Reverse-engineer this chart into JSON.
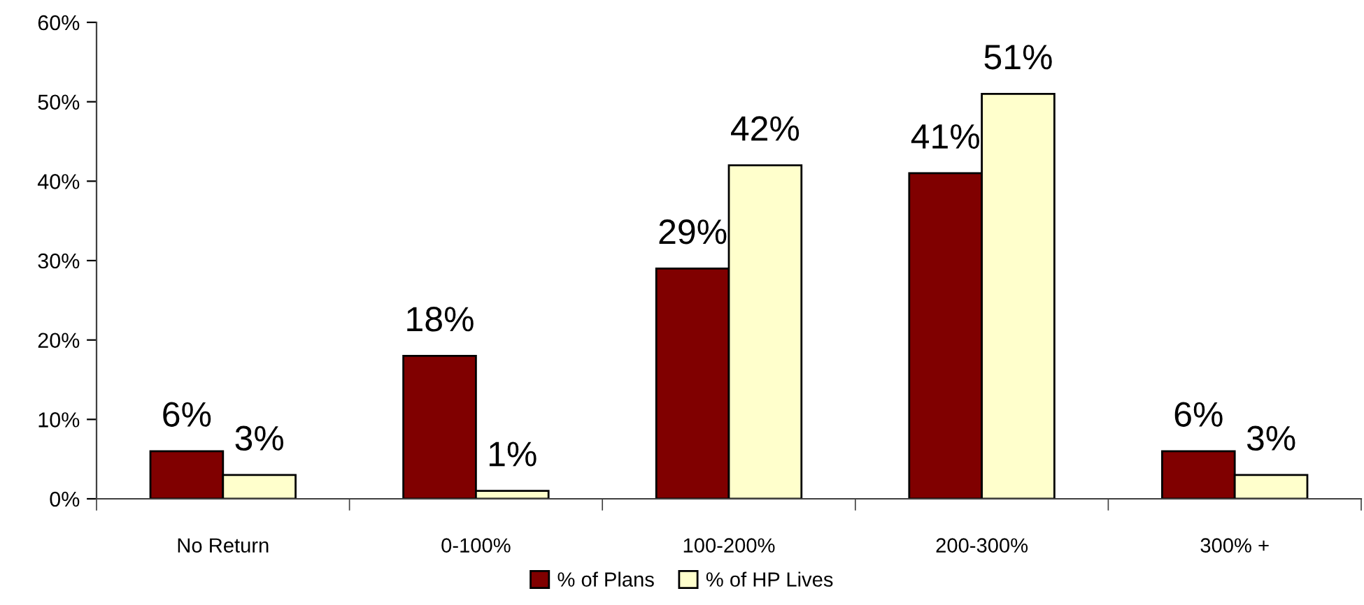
{
  "chart_data": {
    "type": "bar",
    "categories": [
      "No Return",
      "0-100%",
      "100-200%",
      "200-300%",
      "300% +"
    ],
    "series": [
      {
        "name": "% of Plans",
        "color": "#800000",
        "values": [
          6,
          18,
          29,
          41,
          6
        ],
        "value_labels": [
          "6%",
          "18%",
          "29%",
          "41%",
          "6%"
        ]
      },
      {
        "name": "% of HP Lives",
        "color": "#ffffcc",
        "values": [
          3,
          1,
          42,
          51,
          3
        ],
        "value_labels": [
          "3%",
          "1%",
          "42%",
          "51%",
          "3%"
        ]
      }
    ],
    "ylim": [
      0,
      60
    ],
    "yticks": [
      {
        "value": 0,
        "label": "0%"
      },
      {
        "value": 10,
        "label": "10%"
      },
      {
        "value": 20,
        "label": "20%"
      },
      {
        "value": 30,
        "label": "30%"
      },
      {
        "value": 40,
        "label": "40%"
      },
      {
        "value": 50,
        "label": "50%"
      },
      {
        "value": 60,
        "label": "60%"
      }
    ],
    "legend": "bottom"
  }
}
